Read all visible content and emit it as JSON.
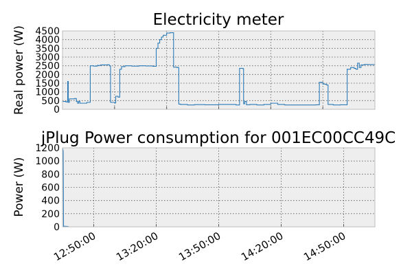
{
  "colors": {
    "series": "#2b7bb9",
    "plot_background": "#eeeeee",
    "frame": "#bcbcbc"
  },
  "chart_data": [
    {
      "type": "line",
      "title": "Electricity meter",
      "xlabel": "",
      "ylabel": "Real power (W)",
      "ylim": [
        0,
        4500
      ],
      "yticks": [
        0,
        500,
        1000,
        1500,
        2000,
        2500,
        3000,
        3500,
        4000,
        4500
      ],
      "xlim": [
        "12:35:00",
        "14:05:00"
      ],
      "grid": true,
      "step": true,
      "series": [
        {
          "points": [
            [
              "12:35:00",
              450
            ],
            [
              "12:36:00",
              420
            ],
            [
              "12:36:30",
              1600
            ],
            [
              "12:36:40",
              400
            ],
            [
              "12:37:00",
              600
            ],
            [
              "12:38:30",
              620
            ],
            [
              "12:39:00",
              450
            ],
            [
              "12:39:20",
              350
            ],
            [
              "12:39:40",
              460
            ],
            [
              "12:40:00",
              350
            ],
            [
              "12:42:00",
              400
            ],
            [
              "12:43:00",
              2500
            ],
            [
              "12:44:00",
              2480
            ],
            [
              "12:45:00",
              2520
            ],
            [
              "12:46:00",
              2550
            ],
            [
              "12:48:00",
              2560
            ],
            [
              "12:48:30",
              2500
            ],
            [
              "12:48:50",
              400
            ],
            [
              "12:50:00",
              360
            ],
            [
              "12:50:20",
              750
            ],
            [
              "12:51:00",
              700
            ],
            [
              "12:51:30",
              2300
            ],
            [
              "12:52:00",
              2450
            ],
            [
              "12:53:00",
              2500
            ],
            [
              "12:55:00",
              2480
            ],
            [
              "12:57:00",
              2500
            ],
            [
              "12:59:00",
              2490
            ],
            [
              "13:01:00",
              2470
            ],
            [
              "13:02:00",
              3500
            ],
            [
              "13:02:30",
              3800
            ],
            [
              "13:03:00",
              4000
            ],
            [
              "13:03:30",
              4150
            ],
            [
              "13:04:00",
              4250
            ],
            [
              "13:05:00",
              4380
            ],
            [
              "13:06:00",
              4400
            ],
            [
              "13:07:00",
              2420
            ],
            [
              "13:08:00",
              2400
            ],
            [
              "13:08:30",
              300
            ],
            [
              "13:09:00",
              280
            ],
            [
              "13:11:00",
              250
            ],
            [
              "13:13:00",
              270
            ],
            [
              "13:16:00",
              260
            ],
            [
              "13:20:00",
              280
            ],
            [
              "13:25:00",
              250
            ],
            [
              "13:26:00",
              2350
            ],
            [
              "13:27:00",
              2330
            ],
            [
              "13:27:10",
              320
            ],
            [
              "13:27:30",
              450
            ],
            [
              "13:28:00",
              260
            ],
            [
              "13:29:00",
              280
            ],
            [
              "13:31:00",
              250
            ],
            [
              "13:33:00",
              280
            ],
            [
              "13:35:00",
              350
            ],
            [
              "13:37:00",
              280
            ],
            [
              "13:39:00",
              250
            ],
            [
              "13:45:00",
              250
            ],
            [
              "13:48:00",
              260
            ],
            [
              "13:49:00",
              1550
            ],
            [
              "13:50:00",
              1450
            ],
            [
              "13:51:00",
              1400
            ],
            [
              "13:51:30",
              280
            ],
            [
              "13:53:00",
              250
            ],
            [
              "13:55:00",
              260
            ],
            [
              "13:57:00",
              2300
            ],
            [
              "13:58:00",
              2400
            ],
            [
              "13:59:00",
              2350
            ],
            [
              "13:59:30",
              2300
            ],
            [
              "14:00:00",
              2650
            ],
            [
              "14:00:30",
              2400
            ],
            [
              "14:01:00",
              2550
            ],
            [
              "14:02:00",
              2580
            ],
            [
              "14:03:00",
              2570
            ],
            [
              "14:05:00",
              2550
            ]
          ]
        }
      ]
    },
    {
      "type": "line",
      "title": "jPlug Power consumption for 001EC00CC49C",
      "xlabel": "",
      "ylabel": "Power (W)",
      "ylim": [
        0,
        1200
      ],
      "yticks": [
        0,
        200,
        400,
        600,
        800,
        1000,
        1200
      ],
      "xlim": [
        "12:35:00",
        "15:05:00"
      ],
      "xticks": [
        "12:50:00",
        "13:20:00",
        "13:50:00",
        "14:20:00",
        "14:50:00"
      ],
      "grid": true,
      "series": [
        {
          "points": [
            [
              "12:35:00",
              1200
            ],
            [
              "12:35:20",
              1150
            ],
            [
              "12:35:30",
              10
            ],
            [
              "12:38:00",
              5
            ]
          ]
        }
      ]
    }
  ]
}
